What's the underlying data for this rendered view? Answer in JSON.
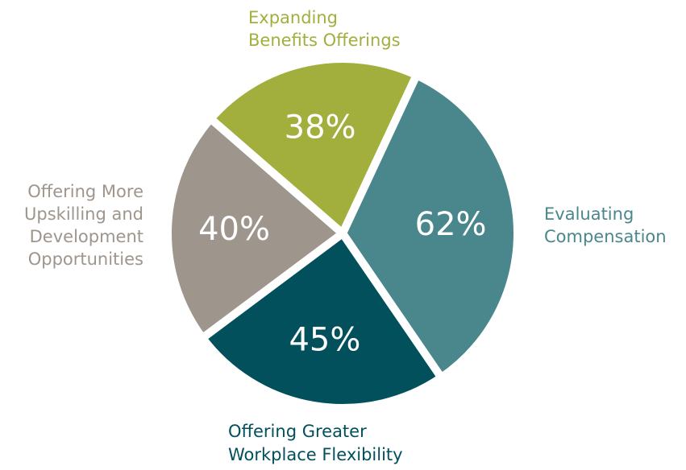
{
  "chart_data": {
    "type": "pie",
    "title": "",
    "categories": [
      "Evaluating Compensation",
      "Offering Greater Workplace Flexibility",
      "Offering More Upskilling and Development Opportunities",
      "Expanding Benefits Offerings"
    ],
    "values": [
      62,
      45,
      40,
      38
    ],
    "value_labels": [
      "62%",
      "45%",
      "40%",
      "38%"
    ],
    "label_lines": [
      [
        "Evaluating",
        "Compensation"
      ],
      [
        "Offering Greater",
        "Workplace Flexibility"
      ],
      [
        "Offering More",
        "Upskilling and",
        "Development",
        "Opportunities"
      ],
      [
        "Expanding",
        "Benefits Offerings"
      ]
    ],
    "colors": [
      "#4a878d",
      "#01505c",
      "#9e958c",
      "#a3af3d"
    ],
    "label_colors": [
      "#4a878d",
      "#01505c",
      "#9e958c",
      "#a3af3d"
    ],
    "unit": "%"
  }
}
